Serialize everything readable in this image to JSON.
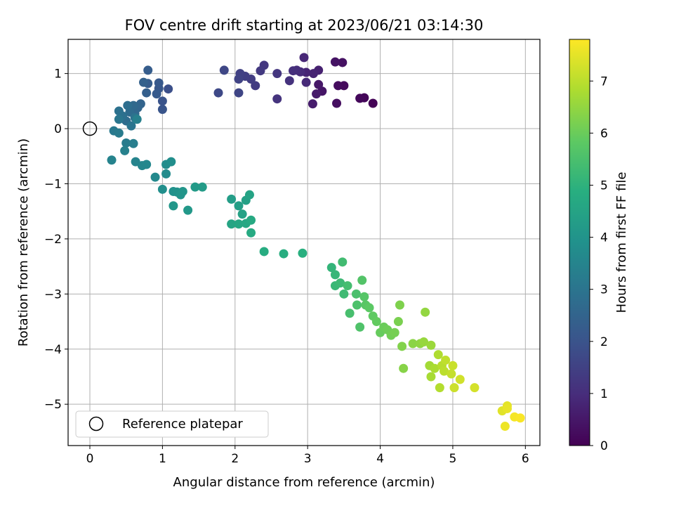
{
  "chart_data": {
    "type": "scatter",
    "title": "FOV centre drift starting at 2023/06/21 03:14:30",
    "xlabel": "Angular distance from reference (arcmin)",
    "ylabel": "Rotation from reference (arcmin)",
    "xlim": [
      -0.3,
      6.2
    ],
    "ylim": [
      -5.75,
      1.62
    ],
    "xticks": [
      0,
      1,
      2,
      3,
      4,
      5,
      6
    ],
    "xtick_labels": [
      "0",
      "1",
      "2",
      "3",
      "4",
      "5",
      "6"
    ],
    "yticks": [
      1,
      0,
      -1,
      -2,
      -3,
      -4,
      -5
    ],
    "ytick_labels": [
      "1",
      "0",
      "−1",
      "−2",
      "−3",
      "−4",
      "−5"
    ],
    "grid": true,
    "colormap": "viridis",
    "colorbar": {
      "label": "Hours from first FF file",
      "range": [
        0,
        7.8
      ],
      "ticks": [
        0,
        1,
        2,
        3,
        4,
        5,
        6,
        7
      ],
      "tick_labels": [
        "0",
        "1",
        "2",
        "3",
        "4",
        "5",
        "6",
        "7"
      ]
    },
    "legend": {
      "placement": "lower-left",
      "entries": [
        "Reference platepar"
      ]
    },
    "reference_point": {
      "x": 0,
      "y": 0
    },
    "points": [
      [
        3.9,
        0.46,
        0.05
      ],
      [
        3.78,
        0.56,
        0.1
      ],
      [
        3.72,
        0.55,
        0.15
      ],
      [
        3.5,
        0.78,
        0.2
      ],
      [
        3.42,
        0.78,
        0.25
      ],
      [
        3.4,
        0.46,
        0.3
      ],
      [
        3.48,
        1.2,
        0.35
      ],
      [
        3.38,
        1.21,
        0.4
      ],
      [
        3.2,
        0.68,
        0.45
      ],
      [
        3.15,
        0.8,
        0.5
      ],
      [
        3.12,
        0.63,
        0.55
      ],
      [
        3.07,
        0.45,
        0.6
      ],
      [
        3.15,
        1.06,
        0.7
      ],
      [
        3.08,
        1.0,
        0.75
      ],
      [
        2.98,
        1.02,
        0.8
      ],
      [
        2.95,
        1.29,
        0.85
      ],
      [
        2.98,
        0.84,
        0.9
      ],
      [
        2.9,
        1.03,
        0.95
      ],
      [
        2.85,
        1.06,
        1.0
      ],
      [
        2.8,
        1.05,
        1.05
      ],
      [
        2.75,
        0.87,
        1.1
      ],
      [
        2.58,
        0.54,
        1.15
      ],
      [
        2.58,
        1.0,
        1.2
      ],
      [
        2.4,
        1.15,
        1.25
      ],
      [
        2.35,
        1.05,
        1.3
      ],
      [
        2.28,
        0.78,
        1.35
      ],
      [
        2.22,
        0.9,
        1.4
      ],
      [
        2.14,
        0.95,
        1.45
      ],
      [
        2.07,
        1.0,
        1.5
      ],
      [
        2.05,
        0.9,
        1.55
      ],
      [
        2.05,
        0.65,
        1.6
      ],
      [
        1.85,
        1.06,
        1.65
      ],
      [
        1.77,
        0.65,
        1.7
      ],
      [
        1.08,
        0.72,
        1.9
      ],
      [
        1.0,
        0.5,
        2.0
      ],
      [
        1.0,
        0.35,
        2.05
      ],
      [
        0.95,
        0.73,
        2.1
      ],
      [
        0.95,
        0.83,
        2.15
      ],
      [
        0.92,
        0.63,
        2.2
      ],
      [
        0.8,
        0.82,
        2.25
      ],
      [
        0.8,
        1.06,
        2.3
      ],
      [
        0.78,
        0.65,
        2.35
      ],
      [
        0.74,
        0.84,
        2.4
      ],
      [
        0.7,
        0.45,
        2.5
      ],
      [
        0.66,
        0.38,
        2.55
      ],
      [
        0.62,
        0.27,
        2.6
      ],
      [
        0.6,
        0.42,
        2.65
      ],
      [
        0.55,
        0.3,
        2.7
      ],
      [
        0.5,
        0.14,
        2.75
      ],
      [
        0.52,
        0.42,
        2.8
      ],
      [
        0.45,
        0.23,
        2.85
      ],
      [
        0.4,
        0.32,
        2.9
      ],
      [
        0.62,
        0.2,
        2.95
      ],
      [
        0.57,
        0.05,
        3.0
      ],
      [
        0.4,
        0.17,
        3.05
      ],
      [
        0.33,
        -0.04,
        3.15
      ],
      [
        0.4,
        -0.08,
        3.2
      ],
      [
        0.5,
        -0.26,
        3.25
      ],
      [
        0.6,
        -0.27,
        3.3
      ],
      [
        0.65,
        0.17,
        3.35
      ],
      [
        0.48,
        -0.4,
        3.4
      ],
      [
        0.3,
        -0.57,
        3.45
      ],
      [
        0.63,
        -0.6,
        3.5
      ],
      [
        0.72,
        -0.67,
        3.55
      ],
      [
        0.78,
        -0.65,
        3.6
      ],
      [
        0.9,
        -0.88,
        3.65
      ],
      [
        1.05,
        -0.82,
        3.7
      ],
      [
        1.05,
        -0.65,
        3.75
      ],
      [
        1.12,
        -0.6,
        3.8
      ],
      [
        1.0,
        -1.1,
        3.85
      ],
      [
        1.15,
        -1.14,
        3.9
      ],
      [
        1.2,
        -1.15,
        3.95
      ],
      [
        1.25,
        -1.2,
        4.0
      ],
      [
        1.28,
        -1.14,
        4.05
      ],
      [
        1.15,
        -1.4,
        4.1
      ],
      [
        1.35,
        -1.48,
        4.15
      ],
      [
        1.45,
        -1.06,
        4.2
      ],
      [
        1.55,
        -1.06,
        4.25
      ],
      [
        1.95,
        -1.28,
        4.3
      ],
      [
        2.05,
        -1.4,
        4.35
      ],
      [
        2.15,
        -1.3,
        4.4
      ],
      [
        2.1,
        -1.55,
        4.45
      ],
      [
        2.2,
        -1.2,
        4.5
      ],
      [
        1.95,
        -1.73,
        4.55
      ],
      [
        2.05,
        -1.73,
        4.6
      ],
      [
        2.15,
        -1.72,
        4.65
      ],
      [
        2.22,
        -1.66,
        4.7
      ],
      [
        2.22,
        -1.89,
        4.75
      ],
      [
        2.4,
        -2.23,
        4.8
      ],
      [
        2.67,
        -2.27,
        4.85
      ],
      [
        2.93,
        -2.26,
        4.9
      ],
      [
        3.33,
        -2.52,
        5.1
      ],
      [
        3.38,
        -2.65,
        5.15
      ],
      [
        3.38,
        -2.85,
        5.2
      ],
      [
        3.45,
        -2.8,
        5.25
      ],
      [
        3.5,
        -3.0,
        5.3
      ],
      [
        3.48,
        -2.42,
        5.35
      ],
      [
        3.55,
        -2.85,
        5.4
      ],
      [
        3.58,
        -3.35,
        5.45
      ],
      [
        3.67,
        -3.0,
        5.5
      ],
      [
        3.68,
        -3.2,
        5.55
      ],
      [
        3.72,
        -3.6,
        5.6
      ],
      [
        3.75,
        -2.75,
        5.65
      ],
      [
        3.78,
        -3.05,
        5.7
      ],
      [
        3.8,
        -3.2,
        5.75
      ],
      [
        3.85,
        -3.25,
        5.8
      ],
      [
        3.9,
        -3.4,
        5.85
      ],
      [
        3.95,
        -3.5,
        5.9
      ],
      [
        4.0,
        -3.7,
        5.95
      ],
      [
        4.05,
        -3.6,
        6.0
      ],
      [
        4.1,
        -3.65,
        6.05
      ],
      [
        4.15,
        -3.75,
        6.1
      ],
      [
        4.2,
        -3.7,
        6.15
      ],
      [
        4.25,
        -3.5,
        6.2
      ],
      [
        4.27,
        -3.2,
        6.25
      ],
      [
        4.3,
        -3.95,
        6.3
      ],
      [
        4.32,
        -4.35,
        6.35
      ],
      [
        4.45,
        -3.9,
        6.4
      ],
      [
        4.55,
        -3.9,
        6.45
      ],
      [
        4.62,
        -3.33,
        6.5
      ],
      [
        4.6,
        -3.87,
        6.55
      ],
      [
        4.7,
        -3.93,
        6.6
      ],
      [
        4.68,
        -4.3,
        6.7
      ],
      [
        4.7,
        -4.5,
        6.75
      ],
      [
        4.75,
        -4.35,
        6.8
      ],
      [
        4.8,
        -4.1,
        6.85
      ],
      [
        4.82,
        -4.7,
        6.9
      ],
      [
        4.85,
        -4.3,
        6.95
      ],
      [
        4.88,
        -4.4,
        7.0
      ],
      [
        4.9,
        -4.2,
        7.05
      ],
      [
        4.98,
        -4.45,
        7.1
      ],
      [
        5.0,
        -4.3,
        7.15
      ],
      [
        5.02,
        -4.7,
        7.2
      ],
      [
        5.1,
        -4.55,
        7.25
      ],
      [
        5.3,
        -4.7,
        7.3
      ],
      [
        5.68,
        -5.12,
        7.45
      ],
      [
        5.75,
        -5.03,
        7.5
      ],
      [
        5.75,
        -5.08,
        7.55
      ],
      [
        5.72,
        -5.4,
        7.6
      ],
      [
        5.85,
        -5.23,
        7.7
      ],
      [
        5.93,
        -5.25,
        7.75
      ]
    ]
  }
}
